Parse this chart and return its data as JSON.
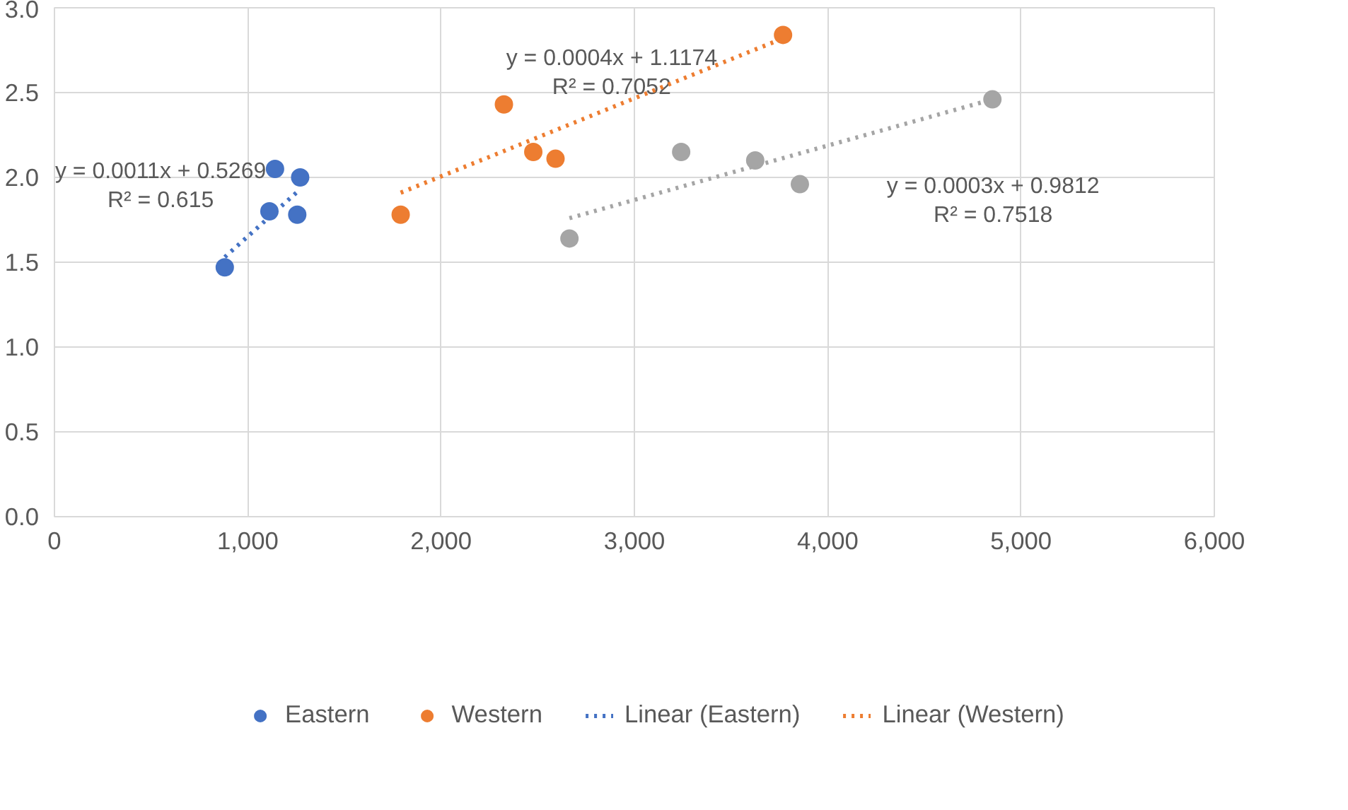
{
  "chart_data": {
    "type": "scatter",
    "xlim": [
      0,
      6000
    ],
    "ylim": [
      0,
      3
    ],
    "xticks": [
      0,
      {
        "value": 1000,
        "label": "1,000"
      },
      {
        "value": 2000,
        "label": "2,000"
      },
      {
        "value": 3000,
        "label": "3,000"
      },
      {
        "value": 4000,
        "label": "4,000"
      },
      {
        "value": 5000,
        "label": "5,000"
      },
      {
        "value": 6000,
        "label": "6,000"
      }
    ],
    "yticks": [
      {
        "value": 0,
        "label": "0.0"
      },
      {
        "value": 0.5,
        "label": "0.5"
      },
      {
        "value": 1,
        "label": "1.0"
      },
      {
        "value": 1.5,
        "label": "1.5"
      },
      {
        "value": 2,
        "label": "2.0"
      },
      {
        "value": 2.5,
        "label": "2.5"
      },
      {
        "value": 3,
        "label": "3.0"
      }
    ],
    "grid": true,
    "legend": "bottom",
    "marker": "circle",
    "series": [
      {
        "name": "Eastern",
        "color": "#4472c4",
        "x": [
          881,
          1141,
          1271,
          1112,
          1256
        ],
        "values": [
          1.47,
          2.05,
          2.0,
          1.8,
          1.78
        ]
      },
      {
        "name": "Western",
        "color": "#ed7d31",
        "x": [
          1791,
          2325,
          2477,
          2592,
          3769
        ],
        "values": [
          1.78,
          2.43,
          2.15,
          2.11,
          2.84
        ]
      },
      {
        "color": "#a5a5a5",
        "x": [
          2664,
          3242,
          3625,
          3856,
          4852
        ],
        "values": [
          1.64,
          2.15,
          2.1,
          1.96,
          2.46
        ]
      },
      {
        "name": "Linear (Eastern)",
        "type": "line",
        "line_style": "dotted",
        "marker": "none",
        "color": "#4472c4",
        "x": [
          881,
          1271
        ],
        "values": [
          1.53,
          1.93
        ]
      },
      {
        "name": "Linear (Western)",
        "type": "line",
        "line_style": "dotted",
        "marker": "none",
        "color": "#ed7d31",
        "x": [
          1791,
          3769
        ],
        "values": [
          1.91,
          2.82
        ]
      },
      {
        "type": "line",
        "line_style": "dotted",
        "marker": "none",
        "color": "#a5a5a5",
        "x": [
          2664,
          4852
        ],
        "values": [
          1.76,
          2.46
        ]
      }
    ],
    "annotations": [
      "y = 0.0011x + 0.5269\nR² = 0.615",
      "y = 0.0004x + 1.1174\nR² = 0.7052",
      "y = 0.0003x + 0.9812\nR² = 0.7518"
    ]
  }
}
